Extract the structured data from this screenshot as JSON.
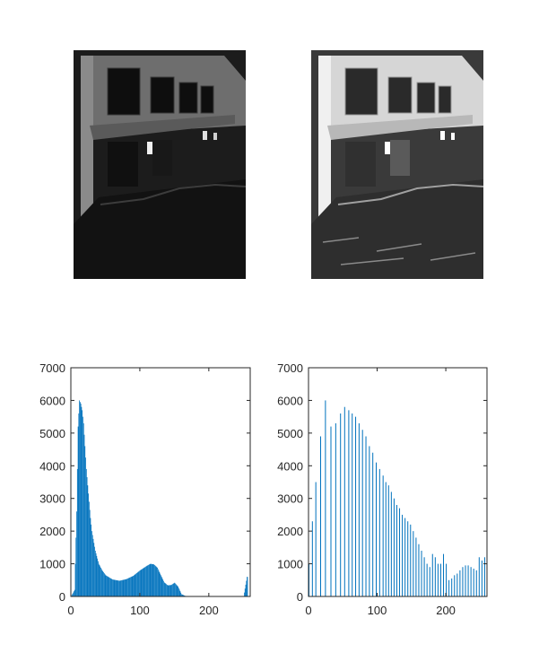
{
  "figure": {
    "layout": "2x2 subplots",
    "background": "#ffffff"
  },
  "images": [
    {
      "description_tag": "original-grayscale-photo",
      "tone": "dark, low contrast"
    },
    {
      "description_tag": "histogram-equalized-photo",
      "tone": "bright, high contrast"
    }
  ],
  "chart_data": [
    {
      "type": "bar",
      "title": "",
      "xlabel": "",
      "ylabel": "",
      "xlim": [
        0,
        260
      ],
      "ylim": [
        0,
        7000
      ],
      "xticks": [
        0,
        100,
        200
      ],
      "yticks": [
        0,
        1000,
        2000,
        3000,
        4000,
        5000,
        6000,
        7000
      ],
      "bar_color": "#0072BD",
      "grid": false,
      "x": [
        0,
        5,
        8,
        10,
        12,
        14,
        16,
        18,
        20,
        22,
        24,
        26,
        28,
        30,
        35,
        40,
        45,
        50,
        60,
        70,
        80,
        90,
        100,
        110,
        115,
        120,
        125,
        130,
        135,
        140,
        145,
        150,
        155,
        160,
        165,
        170,
        180,
        200,
        250,
        255
      ],
      "values": [
        0,
        200,
        2600,
        5200,
        6000,
        5900,
        5700,
        5300,
        4600,
        3900,
        3400,
        2900,
        2400,
        2000,
        1400,
        1000,
        800,
        650,
        520,
        480,
        530,
        630,
        800,
        940,
        1000,
        980,
        880,
        650,
        430,
        340,
        350,
        420,
        300,
        70,
        20,
        0,
        0,
        0,
        0,
        600
      ]
    },
    {
      "type": "bar",
      "title": "",
      "xlabel": "",
      "ylabel": "",
      "xlim": [
        0,
        260
      ],
      "ylim": [
        0,
        7000
      ],
      "xticks": [
        0,
        100,
        200
      ],
      "yticks": [
        0,
        1000,
        2000,
        3000,
        4000,
        5000,
        6000,
        7000
      ],
      "bar_color": "#0072BD",
      "grid": false,
      "x": [
        0,
        5,
        10,
        17,
        24,
        32,
        39,
        46,
        52,
        58,
        63,
        68,
        73,
        78,
        83,
        88,
        93,
        98,
        103,
        108,
        112,
        116,
        120,
        124,
        128,
        132,
        136,
        140,
        144,
        148,
        152,
        156,
        160,
        164,
        168,
        172,
        176,
        180,
        184,
        188,
        192,
        196,
        200,
        204,
        208,
        212,
        216,
        220,
        224,
        228,
        232,
        236,
        240,
        244,
        248,
        252,
        256
      ],
      "values": [
        1000,
        2300,
        3500,
        4900,
        6000,
        5200,
        5300,
        5600,
        5800,
        5700,
        5600,
        5500,
        5300,
        5100,
        4900,
        4600,
        4400,
        4100,
        3900,
        3700,
        3500,
        3400,
        3200,
        3000,
        2800,
        2700,
        2500,
        2400,
        2300,
        2200,
        2000,
        1800,
        1600,
        1400,
        1200,
        1000,
        900,
        1300,
        1200,
        1000,
        1000,
        1300,
        1000,
        500,
        550,
        650,
        700,
        800,
        900,
        950,
        950,
        900,
        850,
        800,
        1200,
        1100,
        1200
      ]
    }
  ]
}
